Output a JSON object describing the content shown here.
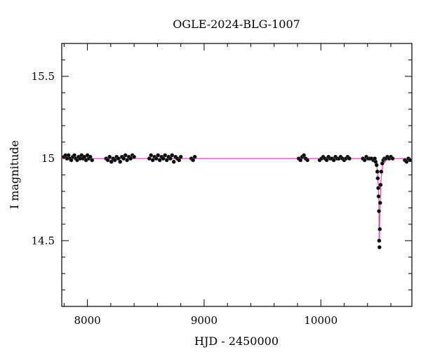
{
  "chart_data": {
    "type": "scatter",
    "title": "OGLE-2024-BLG-1007",
    "xlabel": "HJD - 2450000",
    "ylabel": "I magnitude",
    "xlim": [
      7780,
      10780
    ],
    "ylim": [
      15.7,
      14.1
    ],
    "y_inverted": true,
    "grid": false,
    "legend": "none",
    "x_ticks": [
      {
        "value": 8000,
        "label": "8000"
      },
      {
        "value": 9000,
        "label": "9000"
      },
      {
        "value": 10000,
        "label": "10000"
      }
    ],
    "x_minor_step": 200,
    "y_ticks": [
      {
        "value": 14.5,
        "label": "14.5"
      },
      {
        "value": 15.0,
        "label": "15"
      },
      {
        "value": 15.5,
        "label": "15.5"
      }
    ],
    "y_minor_step": 0.1,
    "colors": {
      "points": "#000000",
      "point_outline": "#5a5a5a",
      "model": "#ff33cc",
      "frame": "#000000"
    },
    "series": [
      {
        "kind": "points",
        "x": [
          7800,
          7812,
          7825,
          7838,
          7850,
          7862,
          7875,
          7888,
          7900,
          7912,
          7925,
          7938,
          7950,
          7962,
          7975,
          7988,
          8000,
          8012,
          8025,
          8040,
          8160,
          8175,
          8190,
          8205,
          8220,
          8235,
          8250,
          8265,
          8280,
          8295,
          8310,
          8325,
          8340,
          8355,
          8370,
          8385,
          8400,
          8530,
          8545,
          8560,
          8575,
          8590,
          8605,
          8620,
          8635,
          8650,
          8665,
          8680,
          8695,
          8710,
          8725,
          8740,
          8755,
          8770,
          8785,
          8800,
          8890,
          8905,
          8920,
          9810,
          9825,
          9840,
          9855,
          9870,
          9885,
          9990,
          10005,
          10020,
          10035,
          10050,
          10065,
          10080,
          10095,
          10110,
          10125,
          10140,
          10155,
          10170,
          10185,
          10200,
          10215,
          10230,
          10245,
          10360,
          10375,
          10390,
          10405,
          10420,
          10435,
          10450,
          10462,
          10470,
          10478,
          10484,
          10488,
          10492,
          10495,
          10498,
          10500,
          10502,
          10505,
          10508,
          10512,
          10518,
          10526,
          10535,
          10545,
          10555,
          10570,
          10585,
          10600,
          10615,
          10720,
          10735,
          10750,
          10765
        ],
        "y": [
          15.01,
          15.02,
          15.0,
          15.02,
          15.0,
          14.99,
          15.01,
          15.02,
          15.0,
          14.99,
          15.01,
          15.0,
          15.02,
          15.0,
          15.01,
          14.99,
          15.02,
          15.0,
          15.01,
          14.99,
          15.0,
          14.99,
          15.01,
          14.98,
          15.0,
          14.99,
          15.01,
          15.0,
          14.98,
          15.01,
          15.0,
          15.02,
          14.99,
          15.01,
          15.0,
          15.02,
          15.01,
          15.0,
          15.02,
          14.99,
          15.01,
          15.0,
          15.02,
          14.99,
          15.01,
          15.0,
          15.02,
          14.99,
          15.01,
          15.0,
          15.02,
          14.98,
          15.01,
          15.0,
          14.99,
          15.01,
          15.0,
          14.99,
          15.01,
          15.0,
          14.99,
          15.01,
          15.02,
          15.0,
          14.99,
          14.99,
          15.0,
          15.01,
          15.0,
          14.99,
          15.01,
          15.0,
          15.0,
          14.99,
          15.01,
          15.0,
          15.0,
          15.01,
          15.0,
          14.99,
          15.0,
          15.01,
          15.0,
          15.0,
          14.99,
          15.01,
          15.0,
          15.0,
          15.0,
          14.99,
          15.0,
          14.98,
          14.96,
          14.92,
          14.88,
          14.82,
          14.77,
          14.68,
          14.5,
          14.46,
          14.57,
          14.73,
          14.84,
          14.92,
          14.97,
          14.99,
          15.0,
          15.0,
          15.01,
          15.0,
          15.01,
          15.0,
          14.99,
          14.98,
          15.0,
          14.99
        ]
      },
      {
        "kind": "model",
        "x": [
          7780,
          10380,
          10440,
          10470,
          10484,
          10492,
          10497,
          10500,
          10503,
          10508,
          10516,
          10530,
          10560,
          10620,
          10780
        ],
        "y": [
          15.0,
          15.0,
          14.995,
          14.98,
          14.93,
          14.84,
          14.72,
          14.5,
          14.58,
          14.74,
          14.88,
          14.96,
          14.99,
          15.0,
          15.0
        ]
      }
    ]
  }
}
